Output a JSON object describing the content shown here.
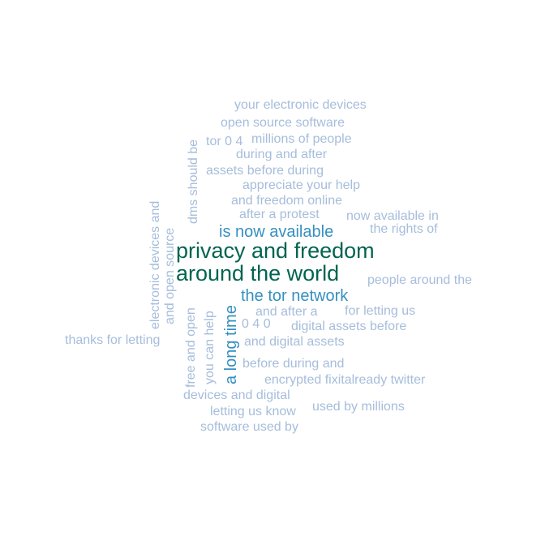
{
  "colors": {
    "low": "#a6bddb",
    "mid": "#3690c0",
    "high": "#016450"
  },
  "words": [
    "your electronic devices",
    "open source software",
    "tor 0 4",
    "millions of people",
    "during and after",
    "assets before during",
    "appreciate your help",
    "and freedom online",
    "after a protest",
    "now available in",
    "the rights of",
    "is now available",
    "privacy and freedom",
    "around the world",
    "the tor network",
    "people around the",
    "and after a",
    "for letting us",
    "0 4 0",
    "digital assets before",
    "thanks for letting",
    "and digital assets",
    "before during and",
    "encrypted fixitalready twitter",
    "devices and digital",
    "used by millions",
    "letting us know",
    "software used by",
    "dms should be",
    "electronic devices and",
    "and open source",
    "free and open",
    "you can help",
    "a long time"
  ]
}
